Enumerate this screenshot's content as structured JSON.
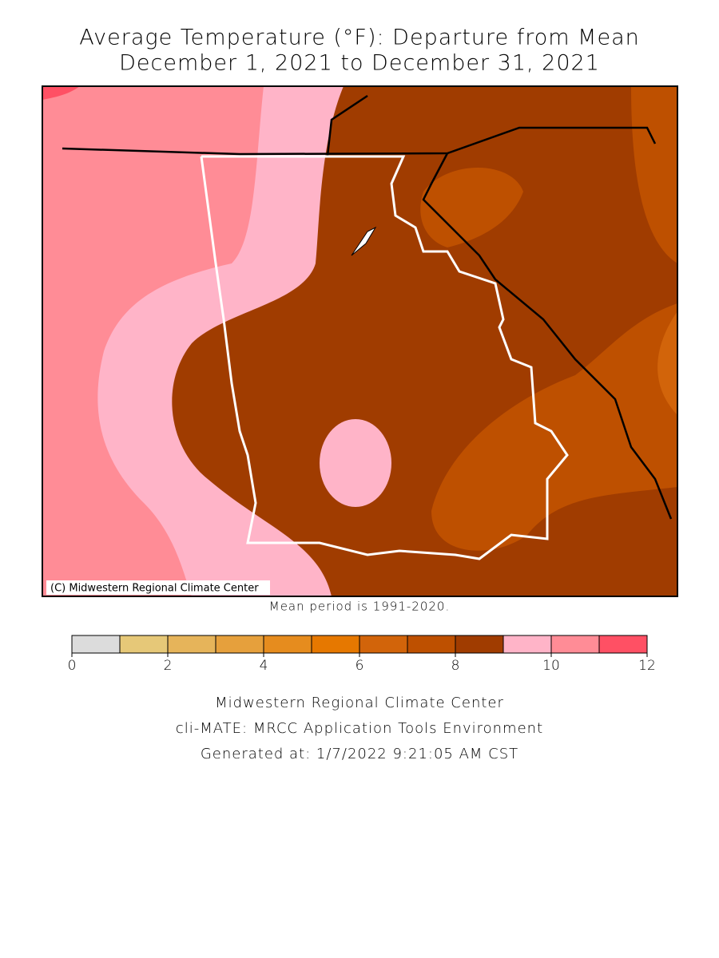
{
  "header": {
    "title": "Average Temperature (°F): Departure from Mean",
    "subtitle": "December 1, 2021 to December 31, 2021"
  },
  "map": {
    "copyright": "(C) Midwestern Regional Climate Center",
    "note": "Mean period is 1991-2020."
  },
  "legend": {
    "bins": [
      0,
      1,
      2,
      3,
      4,
      5,
      6,
      7,
      8,
      9,
      10,
      11,
      12
    ],
    "colors": [
      "#dcdcdc",
      "#e6c878",
      "#e6b45a",
      "#e6a03c",
      "#e68c1e",
      "#e67800",
      "#d2640a",
      "#be5000",
      "#a03c00",
      "#ffb4c8",
      "#ff8c96",
      "#ff5064"
    ],
    "ticks": [
      0,
      2,
      4,
      6,
      8,
      10,
      12
    ]
  },
  "footer": {
    "lines": [
      "Midwestern Regional Climate Center",
      "cli-MATE: MRCC Application Tools Environment",
      "Generated at: 1/7/2022 9:21:05 AM CST"
    ]
  }
}
